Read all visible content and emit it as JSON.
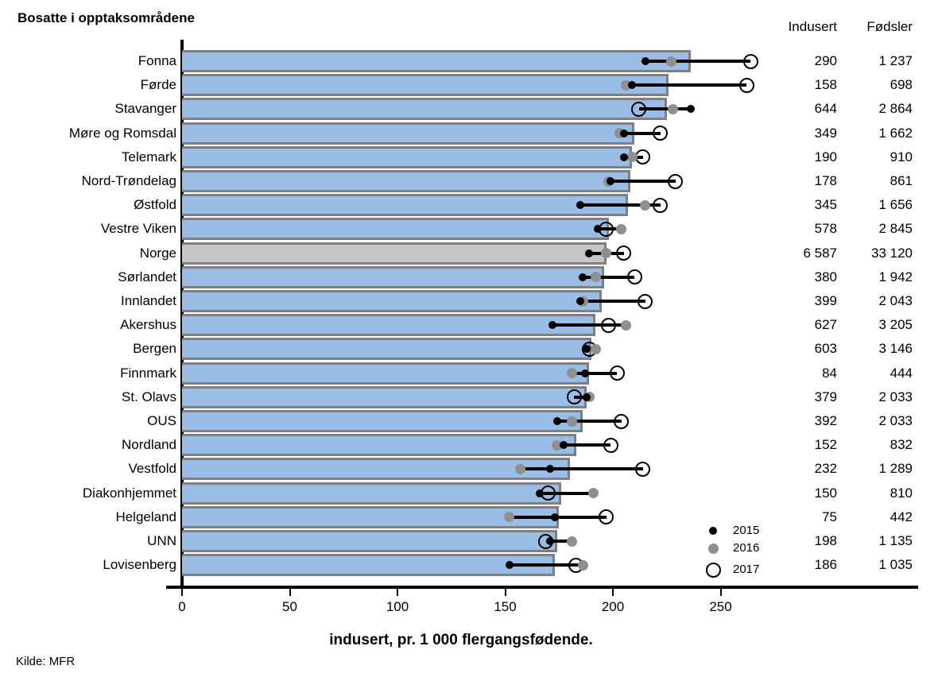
{
  "title": "Bosatte i opptaksområdene",
  "source": "Kilde: MFR",
  "table_headers": {
    "indusert": "Indusert",
    "fodsler": "Fødsler"
  },
  "x_axis": {
    "label": "indusert, pr. 1 000  flergangsfødende.",
    "tick_values": [
      0,
      50,
      100,
      150,
      200,
      250
    ]
  },
  "legend": {
    "items": [
      {
        "label": "2015",
        "marker": "small-black-dot"
      },
      {
        "label": "2016",
        "marker": "gray-dot"
      },
      {
        "label": "2017",
        "marker": "white-circle"
      }
    ]
  },
  "colors": {
    "bar_fill": "#99bde4",
    "bar_border": "#7f7f7f",
    "norge_bar_fill": "#c6c6c6",
    "dot_2015": "#000000",
    "dot_2016": "#8f8f8f",
    "circle_2017_stroke": "#000000",
    "axis": "#000000"
  },
  "chart_data": {
    "type": "bar",
    "orientation": "horizontal",
    "title": "Bosatte i opptaksområdene",
    "xlabel": "indusert, pr. 1 000  flergangsfødende.",
    "xlim": [
      0,
      285
    ],
    "grid": false,
    "legend_position": "inside-bottom-right",
    "categories": [
      "Fonna",
      "Førde",
      "Stavanger",
      "Møre og Romsdal",
      "Telemark",
      "Nord-Trøndelag",
      "Østfold",
      "Vestre Viken",
      "Norge",
      "Sørlandet",
      "Innlandet",
      "Akershus",
      "Bergen",
      "Finnmark",
      "St. Olavs",
      "OUS",
      "Nordland",
      "Vestfold",
      "Diakonhjemmet",
      "Helgeland",
      "UNN",
      "Lovisenberg"
    ],
    "bar_values": [
      236,
      226,
      225,
      210,
      209,
      208,
      207,
      198,
      197,
      196,
      195,
      192,
      190,
      189,
      188,
      186,
      183,
      180,
      176,
      175,
      174,
      173
    ],
    "series": [
      {
        "name": "2015",
        "values": [
          215,
          209,
          236,
          205,
          205,
          199,
          185,
          193,
          189,
          186,
          185,
          172,
          188,
          187,
          188,
          174,
          177,
          171,
          166,
          173,
          171,
          152
        ]
      },
      {
        "name": "2016",
        "values": [
          227,
          206,
          228,
          203,
          209,
          198,
          215,
          204,
          197,
          192,
          186,
          206,
          192,
          181,
          189,
          181,
          174,
          157,
          191,
          152,
          181,
          186
        ]
      },
      {
        "name": "2017",
        "values": [
          264,
          262,
          212,
          222,
          214,
          229,
          222,
          197,
          205,
          210,
          215,
          198,
          189,
          202,
          182,
          204,
          199,
          214,
          170,
          197,
          169,
          183
        ]
      }
    ],
    "highlight_category": "Norge",
    "table": {
      "headers": [
        "Indusert",
        "Fødsler"
      ],
      "indusert": [
        "290",
        "158",
        "644",
        "349",
        "190",
        "178",
        "345",
        "578",
        "6 587",
        "380",
        "399",
        "627",
        "603",
        "84",
        "379",
        "392",
        "152",
        "232",
        "150",
        "75",
        "198",
        "186"
      ],
      "fodsler": [
        "1 237",
        "698",
        "2 864",
        "1 662",
        "910",
        "861",
        "1 656",
        "2 845",
        "33 120",
        "1 942",
        "2 043",
        "3 205",
        "3 146",
        "444",
        "2 033",
        "2 033",
        "832",
        "1 289",
        "810",
        "442",
        "1 135",
        "1 035"
      ]
    }
  }
}
